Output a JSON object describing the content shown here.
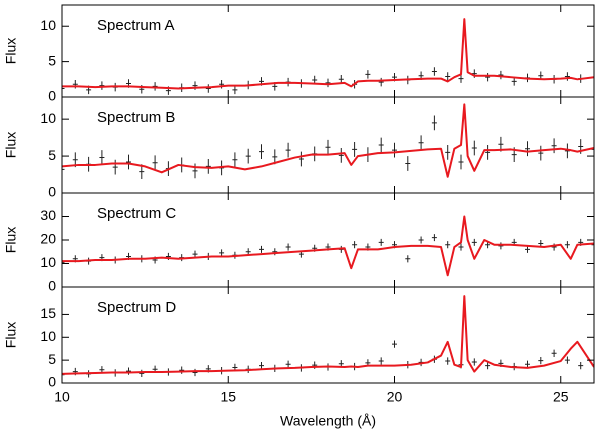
{
  "chart_data": [
    {
      "type": "line",
      "annotation": "Spectrum A",
      "ylabel": "Flux",
      "ylim": [
        0,
        13
      ],
      "yticks": [
        0,
        5,
        10
      ],
      "series": [
        {
          "type": "errorbar",
          "color": "#222222",
          "error": 0.6,
          "x": [
            10,
            10.4,
            10.8,
            11.2,
            11.6,
            12,
            12.4,
            12.8,
            13.2,
            13.6,
            14,
            14.4,
            14.8,
            15.2,
            15.6,
            16,
            16.4,
            16.8,
            17.2,
            17.6,
            18,
            18.4,
            18.8,
            19.2,
            19.6,
            20,
            20.4,
            20.8,
            21.2,
            21.6,
            22,
            22.4,
            22.8,
            23.2,
            23.6,
            24,
            24.4,
            24.8,
            25.2,
            25.6,
            26
          ],
          "values": [
            1.2,
            1.8,
            1.0,
            1.6,
            1.4,
            1.9,
            1.1,
            1.5,
            0.9,
            1.3,
            1.6,
            1.2,
            1.8,
            1.0,
            1.7,
            2.2,
            1.5,
            2.1,
            1.9,
            2.4,
            2.0,
            2.5,
            1.8,
            3.2,
            2.1,
            2.8,
            2.4,
            3.0,
            3.6,
            2.9,
            2.6,
            3.3,
            2.8,
            3.1,
            2.2,
            2.7,
            3.0,
            2.5,
            2.9,
            2.6,
            2.8
          ]
        },
        {
          "type": "line",
          "color": "#e8191f",
          "x": [
            10,
            10.5,
            11,
            11.5,
            12,
            12.5,
            13,
            13.5,
            14,
            14.5,
            15,
            15.5,
            16,
            16.5,
            17,
            17.5,
            18,
            18.5,
            18.7,
            18.9,
            19.2,
            19.5,
            20,
            20.5,
            21,
            21.4,
            21.6,
            21.8,
            22.0,
            22.1,
            22.2,
            22.4,
            22.7,
            23,
            23.5,
            24,
            24.5,
            25,
            25.3,
            25.5,
            26
          ],
          "values": [
            1.5,
            1.5,
            1.4,
            1.5,
            1.5,
            1.4,
            1.3,
            1.2,
            1.3,
            1.4,
            1.6,
            1.6,
            1.8,
            2.0,
            2.0,
            1.9,
            1.8,
            2.0,
            1.5,
            2.2,
            2.3,
            2.3,
            2.4,
            2.5,
            2.6,
            2.6,
            2.2,
            2.8,
            3.2,
            11,
            3.5,
            3.0,
            3.0,
            3.0,
            2.8,
            2.6,
            2.5,
            2.6,
            2.7,
            2.5,
            2.8
          ]
        }
      ]
    },
    {
      "type": "line",
      "annotation": "Spectrum B",
      "ylabel": "Flux",
      "ylim": [
        0,
        13
      ],
      "yticks": [
        0,
        5,
        10
      ],
      "series": [
        {
          "type": "errorbar",
          "color": "#222222",
          "error": 1.0,
          "x": [
            10,
            10.4,
            10.8,
            11.2,
            11.6,
            12,
            12.4,
            12.8,
            13.2,
            13.6,
            14,
            14.4,
            14.8,
            15.2,
            15.6,
            16,
            16.4,
            16.8,
            17.2,
            17.6,
            18,
            18.4,
            18.8,
            19.2,
            19.6,
            20,
            20.4,
            20.8,
            21.2,
            21.6,
            22,
            22.4,
            22.8,
            23.2,
            23.6,
            24,
            24.4,
            24.8,
            25.2,
            25.6,
            26
          ],
          "values": [
            3.2,
            4.5,
            3.9,
            4.8,
            3.5,
            4.2,
            2.9,
            4.1,
            3.3,
            3.8,
            3.0,
            3.6,
            3.4,
            4.5,
            5.0,
            5.6,
            4.9,
            5.8,
            4.6,
            5.3,
            6.2,
            5.1,
            5.9,
            5.2,
            6.5,
            5.8,
            4.0,
            6.8,
            9.5,
            5.5,
            4.2,
            6.1,
            5.5,
            6.6,
            5.2,
            6.0,
            5.4,
            6.4,
            5.7,
            6.3,
            5.9
          ]
        },
        {
          "type": "line",
          "color": "#e8191f",
          "x": [
            10,
            10.5,
            11,
            11.5,
            12,
            12.5,
            13,
            13.5,
            14,
            14.5,
            15,
            15.5,
            16,
            16.5,
            17,
            17.5,
            18,
            18.5,
            18.7,
            18.9,
            19.2,
            19.5,
            20,
            20.5,
            21,
            21.4,
            21.6,
            21.8,
            22.0,
            22.1,
            22.2,
            22.4,
            22.7,
            23,
            23.5,
            24,
            24.5,
            25,
            25.3,
            25.5,
            26
          ],
          "values": [
            3.6,
            3.8,
            3.8,
            4.0,
            4.0,
            3.6,
            2.8,
            3.8,
            3.5,
            3.4,
            3.6,
            3.2,
            3.6,
            4.2,
            4.8,
            5.2,
            5.2,
            5.4,
            3.8,
            5.0,
            5.2,
            5.4,
            5.5,
            5.7,
            5.9,
            6.0,
            2.2,
            6.0,
            6.5,
            12,
            5.0,
            3.0,
            5.8,
            5.8,
            5.9,
            5.6,
            5.8,
            6.0,
            5.8,
            5.6,
            6.1
          ]
        }
      ]
    },
    {
      "type": "line",
      "annotation": "Spectrum C",
      "ylabel": "Flux",
      "ylim": [
        0,
        40
      ],
      "yticks": [
        0,
        10,
        20,
        30
      ],
      "series": [
        {
          "type": "errorbar",
          "color": "#222222",
          "error": 1.5,
          "x": [
            10,
            10.4,
            10.8,
            11.2,
            11.6,
            12,
            12.4,
            12.8,
            13.2,
            13.6,
            14,
            14.4,
            14.8,
            15.2,
            15.6,
            16,
            16.4,
            16.8,
            17.2,
            17.6,
            18,
            18.4,
            18.8,
            19.2,
            19.6,
            20,
            20.4,
            20.8,
            21.2,
            21.6,
            22,
            22.4,
            22.8,
            23.2,
            23.6,
            24,
            24.4,
            24.8,
            25.2,
            25.6,
            26
          ],
          "values": [
            10.5,
            12,
            11,
            12.5,
            11.5,
            13,
            12,
            11.5,
            13,
            12.5,
            14,
            13,
            14.5,
            13.5,
            15,
            16,
            15,
            17,
            14,
            16.5,
            17,
            16,
            18,
            17,
            19,
            18,
            12,
            20,
            21,
            18,
            17,
            19,
            18,
            17.5,
            19,
            16,
            18.5,
            17,
            18,
            19,
            18
          ]
        },
        {
          "type": "line",
          "color": "#e8191f",
          "x": [
            10,
            10.5,
            11,
            11.5,
            12,
            12.5,
            13,
            13.5,
            14,
            14.5,
            15,
            15.5,
            16,
            16.5,
            17,
            17.5,
            18,
            18.5,
            18.7,
            18.9,
            19.2,
            19.5,
            20,
            20.5,
            21,
            21.4,
            21.6,
            21.8,
            22.0,
            22.1,
            22.2,
            22.4,
            22.7,
            23,
            23.5,
            24,
            24.5,
            25,
            25.3,
            25.5,
            26
          ],
          "values": [
            11,
            11,
            11.5,
            11.5,
            12,
            12,
            12.5,
            12,
            12.5,
            13,
            13,
            13.5,
            14,
            14.5,
            15,
            15.5,
            16,
            16.5,
            8,
            16,
            16,
            16,
            17,
            17.5,
            17.5,
            17,
            5,
            17,
            19,
            30,
            20,
            12,
            20,
            18,
            18,
            17.5,
            17,
            18,
            12,
            18,
            18.5
          ]
        }
      ]
    },
    {
      "type": "line",
      "annotation": "Spectrum D",
      "ylabel": "Flux",
      "ylim": [
        0,
        21
      ],
      "yticks": [
        0,
        5,
        10,
        15
      ],
      "xlabel": "Wavelength (Å)",
      "xlim": [
        10,
        26
      ],
      "xticks": [
        10,
        15,
        20,
        25
      ],
      "series": [
        {
          "type": "errorbar",
          "color": "#222222",
          "error": 0.8,
          "x": [
            10,
            10.4,
            10.8,
            11.2,
            11.6,
            12,
            12.4,
            12.8,
            13.2,
            13.6,
            14,
            14.4,
            14.8,
            15.2,
            15.6,
            16,
            16.4,
            16.8,
            17.2,
            17.6,
            18,
            18.4,
            18.8,
            19.2,
            19.6,
            20,
            20.4,
            20.8,
            21.2,
            21.6,
            22,
            22.4,
            22.8,
            23.2,
            23.6,
            24,
            24.4,
            24.8,
            25.2,
            25.6,
            26
          ],
          "values": [
            1.8,
            2.5,
            2.0,
            2.9,
            2.2,
            2.6,
            2.1,
            3.0,
            2.4,
            2.8,
            2.3,
            3.1,
            2.7,
            3.4,
            3.0,
            3.8,
            3.2,
            4.1,
            3.3,
            3.9,
            3.5,
            4.2,
            3.6,
            4.4,
            4.8,
            8.5,
            4.0,
            4.5,
            5.2,
            4.8,
            4.0,
            4.6,
            3.8,
            4.3,
            3.6,
            4.1,
            4.9,
            6.5,
            5.0,
            3.8,
            4.0
          ]
        },
        {
          "type": "line",
          "color": "#e8191f",
          "x": [
            10,
            10.5,
            11,
            11.5,
            12,
            12.5,
            13,
            13.5,
            14,
            14.5,
            15,
            15.5,
            16,
            16.5,
            17,
            17.5,
            18,
            18.5,
            18.7,
            18.9,
            19.2,
            19.5,
            20,
            20.5,
            21,
            21.4,
            21.6,
            21.8,
            22.0,
            22.1,
            22.2,
            22.4,
            22.7,
            23,
            23.5,
            24,
            24.5,
            25,
            25.3,
            25.5,
            26
          ],
          "values": [
            2.0,
            2.1,
            2.2,
            2.3,
            2.3,
            2.4,
            2.4,
            2.5,
            2.6,
            2.6,
            2.7,
            2.8,
            3.0,
            3.2,
            3.3,
            3.5,
            3.6,
            3.5,
            3.6,
            3.5,
            3.8,
            3.8,
            3.8,
            4.0,
            4.5,
            6.0,
            9.0,
            4.0,
            3.5,
            19,
            5.0,
            2.5,
            5.0,
            4.0,
            3.5,
            3.3,
            3.8,
            4.8,
            7.5,
            9.0,
            3.5
          ]
        }
      ]
    }
  ]
}
